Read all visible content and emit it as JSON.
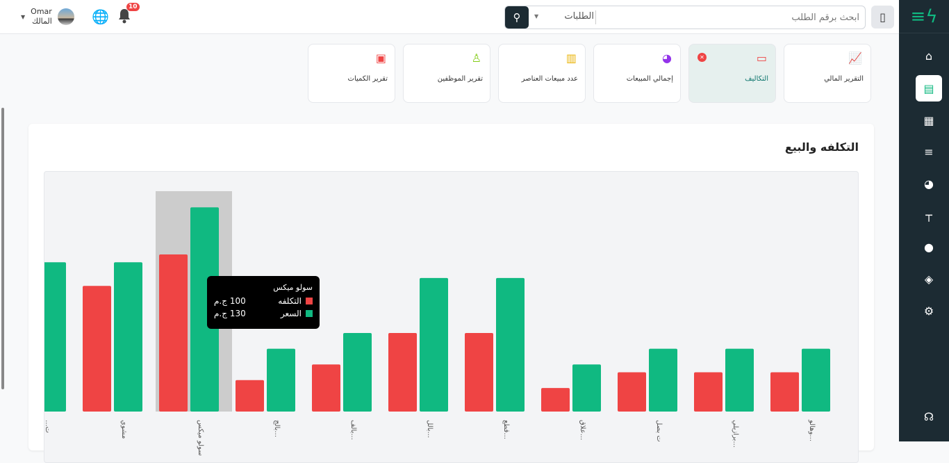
{
  "topbar": {
    "search_placeholder": "ابحث برقم الطلب",
    "search_category": "الطلبات",
    "user_name": "Omar",
    "user_role": "المالك",
    "notifications": "10"
  },
  "sidebar": {
    "items": [
      "home-icon",
      "report-icon",
      "cashier-icon",
      "list-icon",
      "food-icon",
      "table-icon",
      "user-icon",
      "layers-icon",
      "settings-icon"
    ],
    "bottom": "support-icon"
  },
  "cards": [
    {
      "label": "التقرير المالي",
      "icon": "chart-line-icon",
      "color": "#4f46e5"
    },
    {
      "label": "التكاليف",
      "icon": "money-icon",
      "color": "#ef4444",
      "active": true
    },
    {
      "label": "إجمالي المبيعات",
      "icon": "pie-chart-icon",
      "color": "#9333ea"
    },
    {
      "label": "عدد مبيعات العناصر",
      "icon": "bar-chart-icon",
      "color": "#eab308"
    },
    {
      "label": "تقرير الموظفين",
      "icon": "person-icon",
      "color": "#84cc16"
    },
    {
      "label": "تقرير الكميات",
      "icon": "archive-icon",
      "color": "#ef4444"
    }
  ],
  "panel": {
    "title": "التكلفه والبيع"
  },
  "chart_data": {
    "type": "bar",
    "direction": "rtl",
    "categories": [
      "وهالو...",
      "برازيلي...",
      "ت بصل",
      "علاق...",
      "قطع...",
      "بالل...",
      "بالف...",
      "بالج...",
      "سولو ميكس",
      "مشوي",
      "...ت"
    ],
    "series": [
      {
        "name": "التكلفه",
        "color": "#ef4444",
        "values": [
          25,
          25,
          25,
          15,
          50,
          50,
          30,
          20,
          100,
          80,
          80
        ]
      },
      {
        "name": "السعر",
        "color": "#10b981",
        "values": [
          40,
          40,
          40,
          30,
          85,
          85,
          50,
          40,
          130,
          95,
          95
        ]
      }
    ],
    "grid": false,
    "tooltip": {
      "title": "سولو ميكس",
      "rows": [
        {
          "label": "التكلفه",
          "value": "100 ج.م",
          "color": "#ef4444"
        },
        {
          "label": "السعر",
          "value": "130 ج.م",
          "color": "#10b981"
        }
      ]
    },
    "highlighted": "سولو ميكس"
  }
}
